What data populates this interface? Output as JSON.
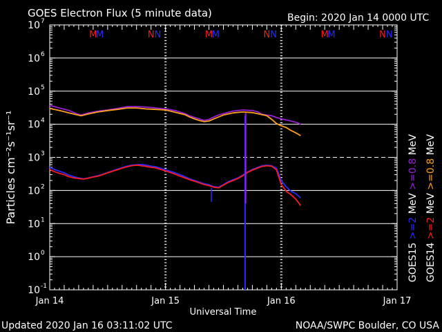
{
  "title": "GOES Electron Flux (5 minute data)",
  "begin": "Begin: 2020 Jan 14 0000 UTC",
  "updated": "Updated 2020 Jan 16 03:11:02 UTC",
  "credit": "NOAA/SWPC Boulder, CO USA",
  "colors": {
    "goes15_08": "#9a1fd6",
    "goes14_08": "#ffa21a",
    "goes15_2": "#2a2aff",
    "goes14_2": "#ff1a1a"
  },
  "chart_data": {
    "type": "line",
    "xlabel": "Universal Time",
    "ylabel": "Particles cm⁻²s⁻¹sr⁻¹",
    "x_unit": "hours since 2020 Jan 14 0000 UTC",
    "xlim": [
      0,
      72
    ],
    "ylim": [
      0.1,
      10000000
    ],
    "log_y": true,
    "x_ticks": [
      {
        "x": 0,
        "label": "Jan 14"
      },
      {
        "x": 24,
        "label": "Jan 15"
      },
      {
        "x": 48,
        "label": "Jan 16"
      },
      {
        "x": 72,
        "label": "Jan 17"
      }
    ],
    "y_ticks": [
      {
        "y": 0.1,
        "base": "10",
        "exp": "-1"
      },
      {
        "y": 1,
        "base": "10",
        "exp": "0"
      },
      {
        "y": 10,
        "base": "10",
        "exp": "1"
      },
      {
        "y": 100,
        "base": "10",
        "exp": "2"
      },
      {
        "y": 1000,
        "base": "10",
        "exp": "3"
      },
      {
        "y": 10000,
        "base": "10",
        "exp": "4"
      },
      {
        "y": 100000,
        "base": "10",
        "exp": "5"
      },
      {
        "y": 1000000,
        "base": "10",
        "exp": "6"
      },
      {
        "y": 10000000,
        "base": "10",
        "exp": "7"
      }
    ],
    "threshold": 1000,
    "grid": true,
    "markers": [
      {
        "x": 9,
        "label": "M",
        "satellite": "GOES14"
      },
      {
        "x": 10.4,
        "label": "M",
        "satellite": "GOES15"
      },
      {
        "x": 21,
        "label": "N",
        "satellite": "GOES14"
      },
      {
        "x": 22.4,
        "label": "N",
        "satellite": "GOES15"
      },
      {
        "x": 33,
        "label": "M",
        "satellite": "GOES14"
      },
      {
        "x": 34.4,
        "label": "M",
        "satellite": "GOES15"
      },
      {
        "x": 45,
        "label": "N",
        "satellite": "GOES14"
      },
      {
        "x": 46.4,
        "label": "N",
        "satellite": "GOES15"
      },
      {
        "x": 57,
        "label": "M",
        "satellite": "GOES14"
      },
      {
        "x": 58.4,
        "label": "M",
        "satellite": "GOES15"
      },
      {
        "x": 69,
        "label": "N",
        "satellite": "GOES14"
      },
      {
        "x": 70.4,
        "label": "N",
        "satellite": "GOES15"
      }
    ],
    "legend": [
      {
        "sat": "GOES15",
        "range": ">=2",
        "unit": "MeV",
        "range2": ">=0.8",
        "color_a": "#2a2aff",
        "color_b": "#9a1fd6"
      },
      {
        "sat": "GOES14",
        "range": ">=2",
        "unit": "MeV",
        "range2": ">=0.8",
        "color_a": "#ff1a1a",
        "color_b": "#ffa21a"
      }
    ],
    "series": [
      {
        "name": "GOES15 >=0.8 MeV",
        "color": "#9a1fd6",
        "x": [
          0,
          2,
          4,
          5.5,
          6.5,
          8,
          10,
          12,
          14,
          16,
          18,
          20,
          22,
          24,
          26,
          28,
          29,
          30,
          31,
          32,
          33,
          34,
          35,
          36,
          38,
          40,
          42,
          43,
          43.5,
          44,
          46,
          47,
          48,
          49,
          50,
          51,
          52
        ],
        "y": [
          37000,
          31000,
          26000,
          21000,
          19000,
          22000,
          25000,
          27000,
          30000,
          34000,
          34000,
          33000,
          31000,
          29000,
          26000,
          21000,
          18000,
          16000,
          14500,
          13000,
          14000,
          16500,
          19000,
          21000,
          25000,
          27000,
          26000,
          24000,
          22000,
          20000,
          18000,
          16000,
          14500,
          13500,
          12500,
          11500,
          10000
        ]
      },
      {
        "name": "GOES14 >=0.8 MeV",
        "color": "#ffa21a",
        "x": [
          0,
          2,
          4,
          5.5,
          6.5,
          8,
          10,
          12,
          14,
          16,
          18,
          20,
          22,
          24,
          26,
          28,
          29,
          30,
          31,
          32,
          33,
          34,
          35,
          36,
          38,
          40,
          42,
          43,
          44,
          45,
          46,
          47,
          48,
          49,
          50,
          51,
          51.5,
          52
        ],
        "y": [
          30000,
          26000,
          22000,
          19500,
          18000,
          20500,
          23500,
          26000,
          28000,
          31000,
          31000,
          29000,
          28000,
          27000,
          23000,
          19500,
          16500,
          14500,
          13000,
          12000,
          12500,
          14500,
          16500,
          19000,
          22000,
          23500,
          22500,
          21000,
          19500,
          18000,
          14000,
          10500,
          9000,
          8000,
          6500,
          5500,
          5000,
          4500
        ]
      },
      {
        "name": "GOES15 >=2 MeV",
        "color": "#2a2aff",
        "x": [
          0,
          1,
          2,
          3,
          4,
          5,
          6,
          7,
          8,
          9,
          10,
          11,
          12,
          13,
          14,
          15,
          16,
          17,
          18,
          19,
          20,
          21,
          22,
          23,
          24,
          25,
          26,
          27,
          28,
          29,
          30,
          31,
          32,
          33,
          34,
          35,
          36,
          37,
          38,
          39,
          40,
          41,
          42,
          43,
          44,
          45,
          46,
          47,
          48,
          49,
          50,
          51,
          52
        ],
        "y": [
          500,
          430,
          380,
          340,
          290,
          260,
          240,
          225,
          240,
          260,
          280,
          310,
          350,
          390,
          440,
          490,
          540,
          580,
          600,
          610,
          580,
          540,
          520,
          470,
          420,
          380,
          340,
          300,
          260,
          225,
          200,
          180,
          160,
          150,
          130,
          125,
          150,
          185,
          210,
          240,
          290,
          360,
          430,
          490,
          560,
          580,
          560,
          470,
          200,
          130,
          95,
          80,
          60
        ]
      },
      {
        "name": "GOES14 >=2 MeV",
        "color": "#ff1a1a",
        "x": [
          0,
          1,
          2,
          3,
          4,
          5,
          6,
          7,
          8,
          9,
          10,
          11,
          12,
          13,
          14,
          15,
          16,
          17,
          18,
          19,
          20,
          21,
          22,
          23,
          24,
          25,
          26,
          27,
          28,
          29,
          30,
          31,
          32,
          33,
          34,
          35,
          36,
          37,
          38,
          39,
          40,
          41,
          42,
          43,
          44,
          45,
          46,
          47,
          48,
          49,
          50,
          51,
          52
        ],
        "y": [
          430,
          370,
          330,
          300,
          260,
          240,
          230,
          220,
          235,
          255,
          270,
          300,
          340,
          380,
          420,
          470,
          520,
          560,
          580,
          560,
          530,
          500,
          480,
          430,
          390,
          350,
          310,
          270,
          240,
          210,
          190,
          170,
          150,
          140,
          125,
          120,
          145,
          175,
          200,
          230,
          280,
          350,
          410,
          470,
          530,
          560,
          540,
          420,
          150,
          95,
          75,
          55,
          35
        ]
      }
    ]
  }
}
